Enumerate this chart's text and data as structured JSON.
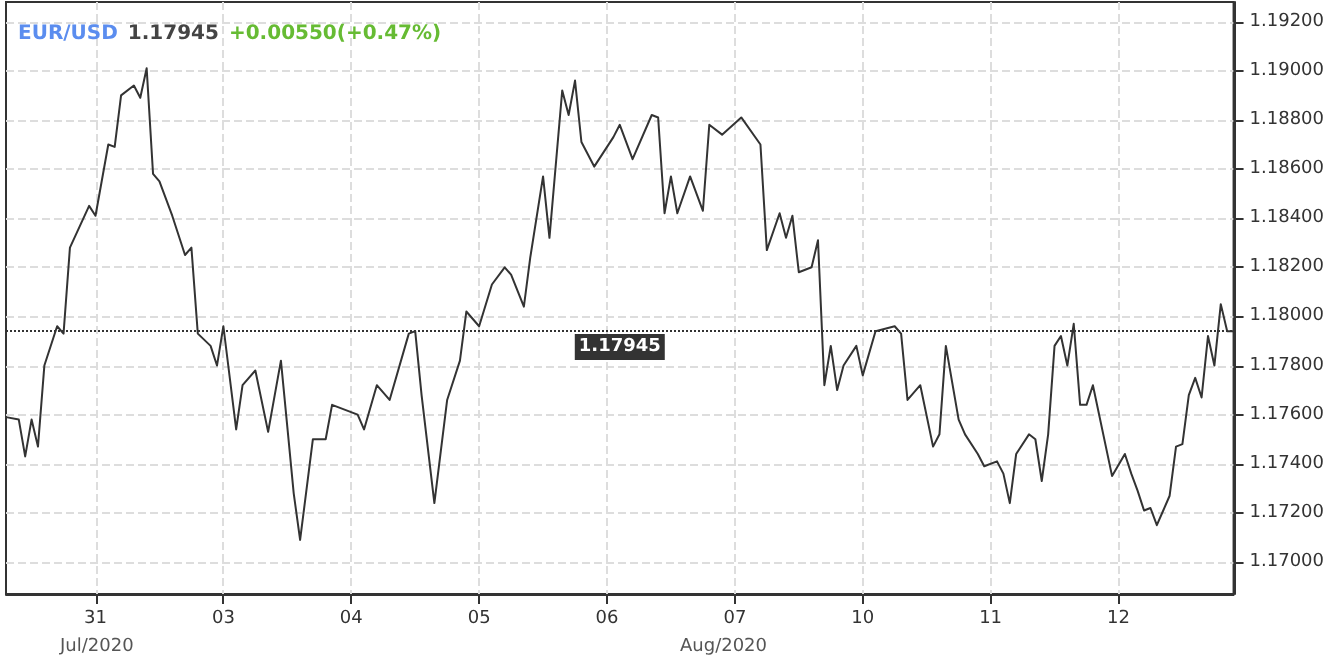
{
  "chart_data": {
    "type": "line",
    "title": "EUR/USD",
    "subtitle": "1.17945 +0.00550(+0.47%)",
    "annotations": [
      "Jul/2020",
      "Aug/2020"
    ],
    "categories": [
      null,
      null,
      null,
      null,
      null,
      null,
      null,
      null,
      null,
      null,
      null,
      null,
      null,
      null,
      "31",
      null,
      null,
      null,
      null,
      null,
      null,
      null,
      null,
      null,
      null,
      null,
      null,
      null,
      null,
      null,
      null,
      null,
      null,
      null,
      "03",
      null,
      null,
      null,
      null,
      null,
      null,
      null,
      null,
      null,
      null,
      null,
      null,
      null,
      null,
      null,
      null,
      null,
      null,
      null,
      "04",
      null,
      null,
      null,
      null,
      null,
      null,
      null,
      null,
      null,
      null,
      null,
      null,
      null,
      null,
      null,
      null,
      null,
      null,
      null,
      "05",
      null,
      null,
      null,
      null,
      null,
      null,
      null,
      null,
      null,
      null,
      null,
      null,
      null,
      null,
      null,
      null,
      null,
      null,
      null,
      "06",
      null,
      null,
      null,
      null,
      null,
      null,
      null,
      null,
      null,
      null,
      null,
      null,
      null,
      null,
      null,
      null,
      null,
      null,
      null,
      "07",
      null,
      null,
      null,
      null,
      null,
      null,
      null,
      null,
      null,
      null,
      null,
      null,
      null,
      null,
      null,
      null,
      null,
      null,
      null,
      "10",
      null,
      null,
      null,
      null,
      null,
      null,
      null,
      null,
      null,
      null,
      null,
      null,
      null,
      null,
      null,
      null,
      null,
      null,
      null,
      "11",
      null,
      null,
      null,
      null,
      null,
      null,
      null,
      null,
      null,
      null,
      null,
      null,
      null,
      null,
      null,
      null,
      null,
      null,
      null,
      "12",
      null,
      null,
      null,
      null,
      null,
      null,
      null,
      null,
      null,
      null,
      null,
      null,
      null,
      null,
      null,
      null,
      null,
      null
    ],
    "series": [
      {
        "color": "#333333",
        "values": [
          1.1759,
          null,
          1.1758,
          1.1743,
          1.1758,
          1.1747,
          1.178,
          null,
          1.1796,
          1.1793,
          1.1828,
          null,
          null,
          1.1845,
          1.1841,
          null,
          1.187,
          1.1869,
          1.189,
          null,
          1.1894,
          1.1889,
          1.1901,
          1.1858,
          1.1855,
          null,
          1.1841,
          null,
          1.1825,
          1.1828,
          1.1793,
          null,
          1.1788,
          1.178,
          1.1796,
          null,
          1.1754,
          1.1772,
          null,
          1.1778,
          null,
          1.1753,
          null,
          1.1782,
          1.1755,
          1.1728,
          1.1709,
          null,
          1.175,
          null,
          1.175,
          1.1764,
          null,
          null,
          null,
          1.176,
          1.1754,
          null,
          1.1772,
          null,
          1.1766,
          null,
          null,
          1.1793,
          1.1794,
          1.1768,
          null,
          1.1724,
          null,
          1.1766,
          null,
          1.1782,
          1.1802,
          null,
          1.1796,
          null,
          1.1813,
          null,
          1.182,
          1.1817,
          null,
          1.1804,
          1.1824,
          null,
          1.1857,
          1.1832,
          null,
          1.1892,
          1.1882,
          1.1896,
          1.1871,
          null,
          1.1861,
          null,
          null,
          1.1873,
          1.1878,
          null,
          1.1864,
          null,
          null,
          1.1882,
          1.1881,
          1.1842,
          1.1857,
          1.1842,
          null,
          1.1857,
          null,
          1.1843,
          1.1878,
          null,
          1.1874,
          null,
          null,
          1.1881,
          null,
          null,
          1.187,
          1.1827,
          null,
          1.1842,
          1.1832,
          1.1841,
          1.1818,
          null,
          1.182,
          1.1831,
          1.1772,
          1.1788,
          1.177,
          1.178,
          null,
          1.1788,
          1.1776,
          null,
          1.1794,
          null,
          null,
          1.1796,
          1.1793,
          1.1766,
          null,
          1.1772,
          null,
          1.1747,
          1.1752,
          1.1788,
          null,
          1.1758,
          1.1752,
          null,
          1.1744,
          1.1739,
          null,
          1.1741,
          1.1736,
          1.1724,
          1.1744,
          null,
          1.1752,
          1.175,
          1.1733,
          1.1752,
          1.1788,
          1.1792,
          1.178,
          1.1797,
          1.1764,
          1.1764,
          1.1772,
          null,
          null,
          1.1735,
          null,
          1.1744,
          1.1736,
          1.1729,
          1.1721,
          1.1722,
          1.1715,
          1.1721,
          1.1727,
          1.1747,
          1.1748,
          1.1768,
          1.1775,
          1.1767,
          1.1792,
          1.178,
          1.1805,
          1.1794,
          1.1794
        ]
      }
    ],
    "ylim": [
      1.1687,
      1.1928
    ],
    "yticks": [
      {
        "value": 1.17,
        "label": "1.17000"
      },
      {
        "value": 1.172,
        "label": "1.17200"
      },
      {
        "value": 1.174,
        "label": "1.17400"
      },
      {
        "value": 1.176,
        "label": "1.17600"
      },
      {
        "value": 1.178,
        "label": "1.17800"
      },
      {
        "value": 1.18,
        "label": "1.18000"
      },
      {
        "value": 1.182,
        "label": "1.18200"
      },
      {
        "value": 1.184,
        "label": "1.18400"
      },
      {
        "value": 1.186,
        "label": "1.18600"
      },
      {
        "value": 1.188,
        "label": "1.18800"
      },
      {
        "value": 1.19,
        "label": "1.19000"
      },
      {
        "value": 1.192,
        "label": "1.19200"
      }
    ],
    "ref_lines": [
      {
        "axis": "y",
        "value": 1.17945,
        "label": "1.17945",
        "color": "#333333",
        "line_style": "dotted"
      }
    ],
    "grid": true,
    "marker": "none",
    "line_style": "solid"
  }
}
